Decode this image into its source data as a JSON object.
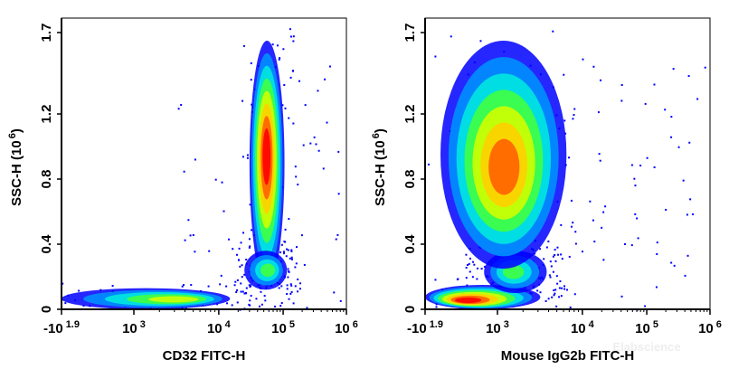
{
  "chart_data": [
    {
      "type": "scatter",
      "subtype": "flow-cytometry density plot",
      "xlabel": "CD32 FITC-H",
      "ylabel": "SSC-H",
      "ylabel_unit": "6",
      "x_scale": "biexponential",
      "x_ticks": [
        {
          "base": "-10",
          "exp": "1.9",
          "value": -79.4
        },
        {
          "base": "10",
          "exp": "3",
          "value": 1000
        },
        {
          "base": "10",
          "exp": "4",
          "value": 10000
        },
        {
          "base": "10",
          "exp": "5",
          "value": 100000
        },
        {
          "base": "10",
          "exp": "6",
          "value": 1000000
        }
      ],
      "y_ticks": [
        "0",
        "0.4",
        "0.8",
        "1.2",
        "1.7"
      ],
      "ylim": [
        0,
        1.7
      ],
      "color_scale": [
        "#0000ff",
        "#0090ff",
        "#00e8e0",
        "#40ff40",
        "#d0ff00",
        "#ffd000",
        "#ff6000",
        "#ff0000"
      ],
      "populations": [
        {
          "x": [
            -80,
            15000
          ],
          "y": [
            0.0,
            0.13
          ],
          "peak": {
            "x": 4000,
            "y": 0.06
          },
          "density": 0.6
        },
        {
          "x": [
            30000,
            105000
          ],
          "y": [
            0.14,
            1.65
          ],
          "peak": {
            "x": 55000,
            "y": 0.95
          },
          "density": 1.0
        },
        {
          "x": [
            25000,
            115000
          ],
          "y": [
            0.12,
            0.36
          ],
          "peak": {
            "x": 60000,
            "y": 0.24
          },
          "density": 0.5
        }
      ]
    },
    {
      "type": "scatter",
      "subtype": "flow-cytometry density plot",
      "xlabel": "Mouse IgG2b FITC-H",
      "ylabel": "SSC-H",
      "ylabel_unit": "6",
      "x_scale": "biexponential",
      "x_ticks": [
        {
          "base": "-10",
          "exp": "1.9",
          "value": -79.4
        },
        {
          "base": "10",
          "exp": "3",
          "value": 1000
        },
        {
          "base": "10",
          "exp": "4",
          "value": 10000
        },
        {
          "base": "10",
          "exp": "5",
          "value": 100000
        },
        {
          "base": "10",
          "exp": "6",
          "value": 1000000
        }
      ],
      "y_ticks": [
        "0",
        "0.4",
        "0.8",
        "1.2",
        "1.7"
      ],
      "ylim": [
        0,
        1.7
      ],
      "color_scale": [
        "#0000ff",
        "#0090ff",
        "#00e8e0",
        "#40ff40",
        "#d0ff00",
        "#ffd000",
        "#ff6000",
        "#ff0000"
      ],
      "populations": [
        {
          "x": [
            -80,
            3200
          ],
          "y": [
            0.0,
            0.15
          ],
          "peak": {
            "x": 500,
            "y": 0.05
          },
          "density": 1.0
        },
        {
          "x": [
            800,
            3800
          ],
          "y": [
            0.1,
            0.36
          ],
          "peak": {
            "x": 1500,
            "y": 0.23
          },
          "density": 0.45
        },
        {
          "x": [
            150,
            6500
          ],
          "y": [
            0.25,
            1.65
          ],
          "peak": {
            "x": 1200,
            "y": 0.85
          },
          "density": 0.85
        }
      ]
    }
  ],
  "watermark": "Elabscience"
}
